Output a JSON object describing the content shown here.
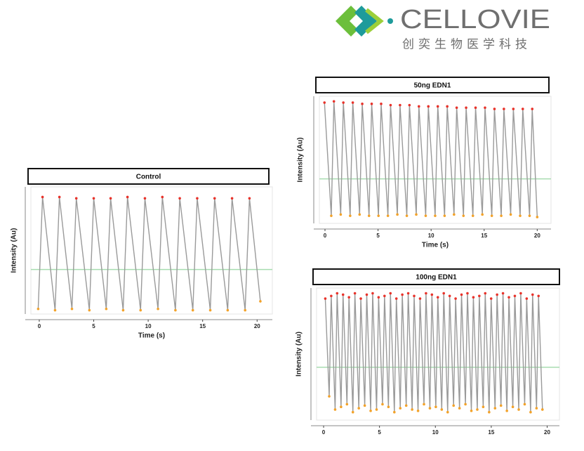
{
  "header": {
    "logo_text": "CELLOVIE",
    "logo_subtitle": "创奕生物医学科技"
  },
  "chart_data": [
    {
      "type": "line",
      "title": "Control",
      "x_label": "Time (s)",
      "y_label": "Intensity (Au)",
      "xlim": [
        -0.77,
        21.4
      ],
      "xticks": [
        0,
        5,
        10,
        15,
        20
      ],
      "ylim": [
        0,
        100
      ],
      "threshold": 35,
      "threshold_color": "#a8dcb0",
      "peak_color": "#e8322a",
      "trough_color": "#f2a22a",
      "series": [
        {
          "color": "#9a9a9a",
          "x": [
            -0.1,
            0.3,
            1.45,
            1.85,
            3.0,
            3.4,
            4.6,
            5.0,
            6.15,
            6.55,
            7.7,
            8.1,
            9.3,
            9.7,
            10.9,
            11.3,
            12.5,
            12.9,
            14.1,
            14.5,
            15.7,
            16.1,
            17.3,
            17.7,
            18.9,
            19.3,
            20.3
          ],
          "values": [
            4,
            92,
            3,
            92,
            4,
            91,
            3,
            91,
            4,
            91,
            3,
            92,
            3,
            91,
            4,
            92,
            3,
            91,
            3,
            91,
            3,
            91,
            3,
            91,
            3,
            91,
            10
          ]
        }
      ]
    },
    {
      "type": "line",
      "title": "50ng EDN1",
      "x_label": "Time (s)",
      "y_label": "Intensity (Au)",
      "xlim": [
        -0.53,
        21.3
      ],
      "xticks": [
        0,
        5,
        10,
        15,
        20
      ],
      "ylim": [
        0,
        100
      ],
      "threshold": 35,
      "threshold_color": "#a8dcb0",
      "peak_color": "#e8322a",
      "trough_color": "#f2a22a",
      "series": [
        {
          "color": "#9a9a9a",
          "x": [
            -0.05,
            0.59,
            0.84,
            1.48,
            1.73,
            2.37,
            2.62,
            3.26,
            3.51,
            4.15,
            4.4,
            5.04,
            5.29,
            5.93,
            6.18,
            6.82,
            7.07,
            7.71,
            7.96,
            8.6,
            8.85,
            9.49,
            9.74,
            10.38,
            10.63,
            11.27,
            11.52,
            12.16,
            12.41,
            13.05,
            13.3,
            13.94,
            14.19,
            14.83,
            15.08,
            15.72,
            15.97,
            16.61,
            16.86,
            17.5,
            17.75,
            18.39,
            18.64,
            19.28,
            19.53,
            20.0
          ],
          "values": [
            95,
            6,
            96,
            7,
            95,
            6,
            95,
            7,
            94,
            6,
            94,
            6,
            94,
            6,
            93,
            7,
            93,
            6,
            93,
            7,
            92,
            6,
            92,
            6,
            92,
            6,
            92,
            7,
            91,
            6,
            91,
            6,
            91,
            7,
            91,
            6,
            90,
            6,
            90,
            7,
            90,
            6,
            90,
            6,
            90,
            5
          ]
        }
      ]
    },
    {
      "type": "line",
      "title": "100ng EDN1",
      "y_label": "Intensity (Au)",
      "xlim": [
        -0.63,
        21.1
      ],
      "xticks": [
        0,
        5,
        10,
        15,
        20
      ],
      "ylim": [
        0,
        100
      ],
      "threshold": 40,
      "threshold_color": "#a8dcb0",
      "peak_color": "#e8322a",
      "trough_color": "#f2a22a",
      "series": [
        {
          "color": "#9a9a9a",
          "x": [
            0.15,
            0.5,
            0.68,
            1.03,
            1.21,
            1.56,
            1.74,
            2.09,
            2.27,
            2.62,
            2.8,
            3.15,
            3.33,
            3.68,
            3.86,
            4.21,
            4.39,
            4.74,
            4.92,
            5.27,
            5.45,
            5.8,
            5.98,
            6.33,
            6.51,
            6.86,
            7.04,
            7.39,
            7.57,
            7.92,
            8.1,
            8.45,
            8.63,
            8.98,
            9.16,
            9.51,
            9.69,
            10.04,
            10.22,
            10.57,
            10.75,
            11.1,
            11.28,
            11.63,
            11.81,
            12.16,
            12.34,
            12.69,
            12.87,
            13.22,
            13.4,
            13.75,
            13.93,
            14.28,
            14.46,
            14.81,
            14.99,
            15.34,
            15.52,
            15.87,
            16.05,
            16.4,
            16.58,
            16.93,
            17.11,
            17.46,
            17.64,
            17.99,
            18.17,
            18.52,
            18.7,
            19.05,
            19.23,
            19.58
          ],
          "values": [
            92,
            18,
            94,
            8,
            96,
            10,
            95,
            12,
            93,
            6,
            96,
            9,
            92,
            11,
            95,
            7,
            96,
            8,
            93,
            12,
            94,
            10,
            96,
            6,
            92,
            9,
            95,
            11,
            96,
            8,
            94,
            7,
            92,
            12,
            96,
            9,
            95,
            10,
            93,
            8,
            96,
            6,
            94,
            11,
            92,
            9,
            95,
            12,
            96,
            7,
            93,
            8,
            94,
            10,
            96,
            6,
            92,
            9,
            95,
            11,
            96,
            7,
            93,
            10,
            94,
            8,
            96,
            12,
            92,
            6,
            95,
            9,
            94,
            8
          ]
        }
      ]
    }
  ]
}
